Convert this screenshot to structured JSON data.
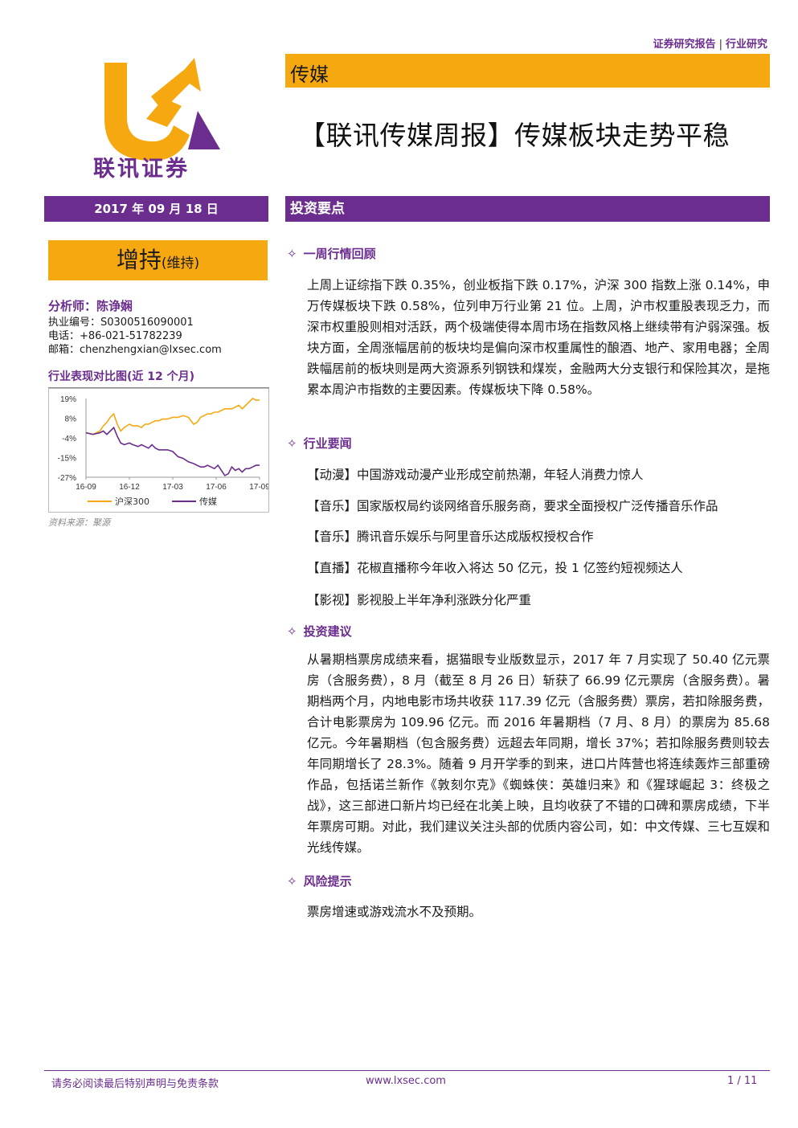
{
  "header": {
    "report_type": "证券研究报告",
    "separator": "|",
    "category": "行业研究",
    "sector": "传媒",
    "title": "【联讯传媒周报】传媒板块走势平稳",
    "logo_text": "联讯证券"
  },
  "date": "2017 年 09 月 18 日",
  "summary_heading": "投资要点",
  "rating": {
    "main": "增持",
    "sub": "(维持)"
  },
  "analyst": {
    "name": "分析师：陈诤娴",
    "license": "执业编号：S0300516090001",
    "phone": "电话：+86-021-51782239",
    "email": "邮箱：chenzhengxian@lxsec.com"
  },
  "chart_title": "行业表现对比图(近 12 个月)",
  "chart_source": "资料来源：聚源",
  "chart_data": {
    "type": "line",
    "title": "",
    "x_tick_labels": [
      "16-09",
      "16-12",
      "17-03",
      "17-06",
      "17-09"
    ],
    "y_tick_labels": [
      "19%",
      "8%",
      "-4%",
      "-15%",
      "-27%"
    ],
    "ylim": [
      -27,
      19
    ],
    "legend_placement": "bottom",
    "series": [
      {
        "name": "沪深300",
        "color": "#f6a811",
        "x": [
          0,
          0.04,
          0.08,
          0.1,
          0.12,
          0.14,
          0.16,
          0.18,
          0.2,
          0.22,
          0.25,
          0.27,
          0.3,
          0.32,
          0.34,
          0.36,
          0.38,
          0.4,
          0.42,
          0.44,
          0.47,
          0.5,
          0.53,
          0.56,
          0.59,
          0.62,
          0.64,
          0.66,
          0.68,
          0.7,
          0.72,
          0.74,
          0.76,
          0.78,
          0.8,
          0.82,
          0.84,
          0.86,
          0.88,
          0.9,
          0.92,
          0.94,
          0.96,
          0.98,
          1.0
        ],
        "values": [
          -1,
          -2,
          0,
          3,
          5,
          8,
          10,
          4,
          0,
          2,
          4,
          3,
          3,
          2,
          4,
          4,
          5,
          6,
          6,
          7,
          7,
          8,
          8,
          9,
          8,
          4,
          5,
          8,
          9,
          10,
          10,
          11,
          11,
          12,
          13,
          13,
          13,
          14,
          15,
          13,
          15,
          17,
          19,
          18,
          18
        ]
      },
      {
        "name": "传媒",
        "color": "#6b2d8e",
        "x": [
          0,
          0.04,
          0.08,
          0.1,
          0.12,
          0.14,
          0.16,
          0.18,
          0.2,
          0.22,
          0.25,
          0.27,
          0.3,
          0.32,
          0.34,
          0.36,
          0.38,
          0.4,
          0.42,
          0.44,
          0.47,
          0.5,
          0.53,
          0.56,
          0.59,
          0.62,
          0.64,
          0.66,
          0.68,
          0.7,
          0.72,
          0.74,
          0.76,
          0.78,
          0.8,
          0.82,
          0.84,
          0.86,
          0.88,
          0.9,
          0.92,
          0.94,
          0.96,
          0.98,
          1.0
        ],
        "values": [
          -1,
          -2,
          -1,
          0,
          -2,
          0,
          2,
          -3,
          -7,
          -8,
          -7,
          -8,
          -9,
          -8,
          -9,
          -10,
          -8,
          -10,
          -11,
          -11,
          -11,
          -12,
          -15,
          -16,
          -18,
          -19,
          -20,
          -21,
          -21,
          -20,
          -21,
          -22,
          -20,
          -23,
          -26,
          -25,
          -21,
          -23,
          -22,
          -24,
          -22,
          -22,
          -21,
          -20,
          -20
        ]
      }
    ]
  },
  "sections": {
    "market_review": {
      "heading": "一周行情回顾",
      "text": "上周上证综指下跌 0.35%，创业板指下跌 0.17%，沪深 300 指数上涨 0.14%，申万传媒板块下跌 0.58%，位列申万行业第 21 位。上周，沪市权重股表现乏力，而深市权重股则相对活跃，两个极端使得本周市场在指数风格上继续带有沪弱深强。板块方面，全周涨幅居前的板块均是偏向深市权重属性的酿酒、地产、家用电器；全周跌幅居前的板块则是两大资源系列钢铁和煤炭，金融两大分支银行和保险其次，是拖累本周沪市指数的主要因素。传媒板块下降 0.58%。"
    },
    "industry_news": {
      "heading": "行业要闻",
      "items": [
        "【动漫】中国游戏动漫产业形成空前热潮，年轻人消费力惊人",
        "【音乐】国家版权局约谈网络音乐服务商，要求全面授权广泛传播音乐作品",
        "【音乐】腾讯音乐娱乐与阿里音乐达成版权授权合作",
        "【直播】花椒直播称今年收入将达 50 亿元，投 1 亿签约短视频达人",
        "【影视】影视股上半年净利涨跌分化严重"
      ]
    },
    "investment_advice": {
      "heading": "投资建议",
      "text": "从暑期档票房成绩来看，据猫眼专业版数显示，2017 年 7 月实现了 50.40 亿元票房（含服务费），8 月（截至 8 月 26 日）斩获了 66.99 亿元票房（含服务费）。暑期档两个月，内地电影市场共收获 117.39 亿元（含服务费）票房，若扣除服务费，合计电影票房为 109.96 亿元。而 2016 年暑期档（7 月、8 月）的票房为 85.68 亿元。今年暑期档（包含服务费）远超去年同期，增长 37%；若扣除服务费则较去年同期增长了 28.3%。随着 9 月开学季的到来，进口片阵营也将连续轰炸三部重磅作品，包括诺兰新作《敦刻尔克》《蜘蛛侠：英雄归来》和《猩球崛起 3：终极之战》，这三部进口新片均已经在北美上映，且均收获了不错的口碑和票房成绩，下半年票房可期。对此，我们建议关注头部的优质内容公司，如：中文传媒、三七互娱和光线传媒。"
    },
    "risk": {
      "heading": "风险提示",
      "text": "票房增速或游戏流水不及预期。"
    }
  },
  "section_marker": "✧",
  "footer": {
    "disclaimer": "请务必阅读最后特别声明与免责条款",
    "website": "www.lxsec.com",
    "page": "1 / 11"
  },
  "colors": {
    "brand_purple": "#6b2d8e",
    "brand_orange": "#f6a811"
  }
}
